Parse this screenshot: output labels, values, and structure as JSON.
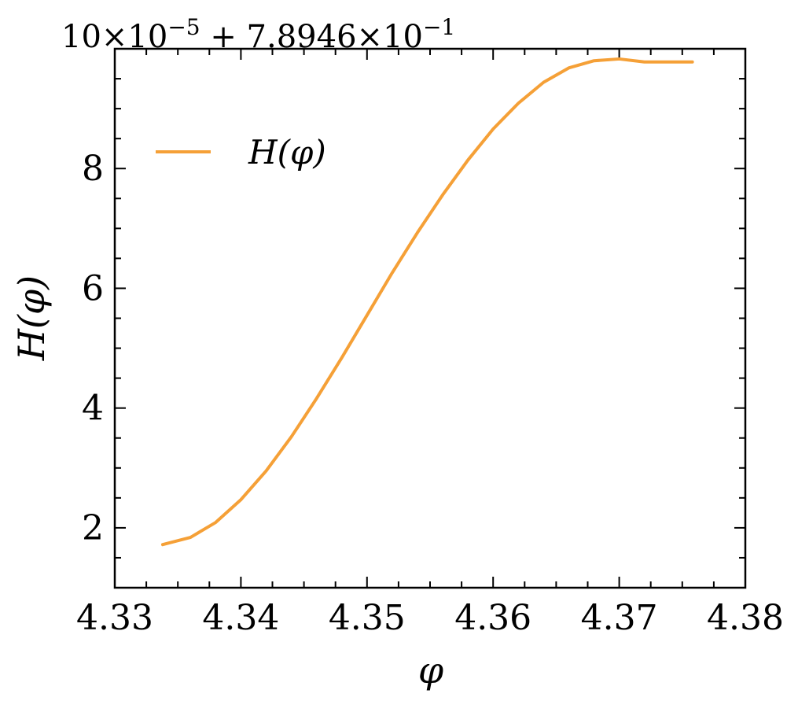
{
  "chart_data": {
    "type": "line",
    "title": "",
    "xlabel": "φ",
    "ylabel": "H(φ)",
    "xlim": [
      4.33,
      4.38
    ],
    "ylim": [
      1.0,
      10.0
    ],
    "x_ticks": [
      "4.33",
      "4.34",
      "4.35",
      "4.36",
      "4.37",
      "4.38"
    ],
    "y_ticks": [
      "2",
      "4",
      "6",
      "8",
      "10"
    ],
    "y_offset_text": {
      "base": "×10",
      "exp1": "−5",
      "rest": " + 7.8946×10",
      "exp2": "−1"
    },
    "legend": {
      "position": "upper-left",
      "entries": [
        "H(φ)"
      ]
    },
    "grid": false,
    "series": [
      {
        "name": "H(φ)",
        "color": "#f5a037",
        "x": [
          4.3338,
          4.336,
          4.338,
          4.34,
          4.342,
          4.344,
          4.346,
          4.348,
          4.35,
          4.352,
          4.354,
          4.356,
          4.358,
          4.36,
          4.362,
          4.364,
          4.366,
          4.368,
          4.37,
          4.372,
          4.374,
          4.3758
        ],
        "y": [
          1.72,
          1.84,
          2.09,
          2.47,
          2.95,
          3.52,
          4.16,
          4.84,
          5.55,
          6.26,
          6.93,
          7.56,
          8.14,
          8.66,
          9.09,
          9.44,
          9.68,
          9.8,
          9.83,
          9.78,
          9.78,
          9.78
        ]
      }
    ]
  }
}
